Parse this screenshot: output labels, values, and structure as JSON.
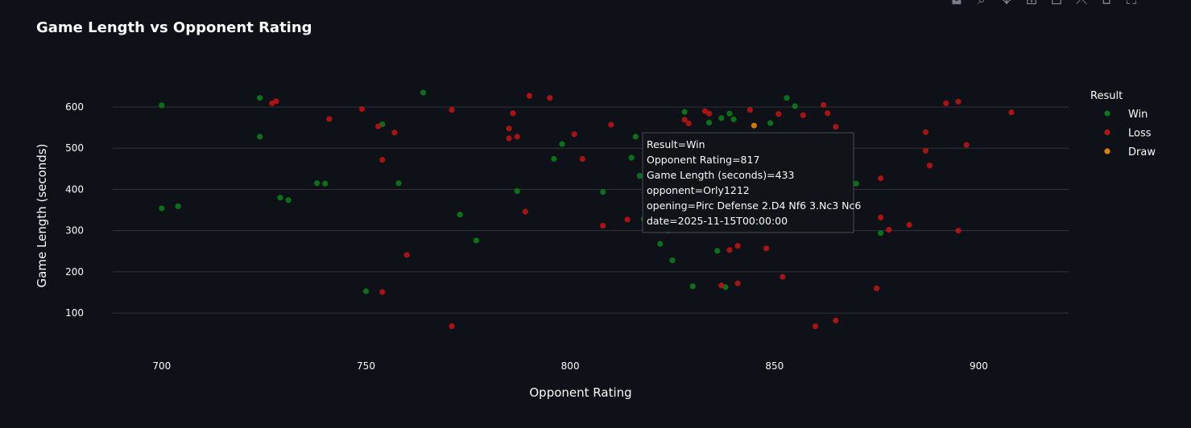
{
  "toolbar": {
    "icons": [
      "camera-icon",
      "zoom-icon",
      "pan-icon",
      "zoom-in-icon",
      "zoom-out-icon",
      "autoscale-icon",
      "reset-axes-icon",
      "fullscreen-icon"
    ],
    "glyphs": [
      "◘",
      "⌕",
      "✥",
      "⊞",
      "⊟",
      "⤧",
      "⌂",
      "⛶"
    ]
  },
  "colors": {
    "background": "#0e1117",
    "grid": "#31343b",
    "text": "#fafafa",
    "win": "#0b7a1a",
    "loss": "#b51515",
    "draw": "#d9830b",
    "tooltip_bg": "#111418",
    "tooltip_border": "#4a4d55"
  },
  "chart_data": {
    "type": "scatter",
    "title": "Game Length vs Opponent Rating",
    "xlabel": "Opponent Rating",
    "ylabel": "Game Length (seconds)",
    "xlim": [
      688,
      922
    ],
    "ylim": [
      30,
      680
    ],
    "xticks": [
      700,
      750,
      800,
      850,
      900
    ],
    "yticks": [
      100,
      200,
      300,
      400,
      500,
      600
    ],
    "grid": true,
    "legend": {
      "title": "Result",
      "position": "top-right"
    },
    "series": [
      {
        "name": "Win",
        "points": [
          [
            700,
            604
          ],
          [
            700,
            354
          ],
          [
            704,
            359
          ],
          [
            724,
            622
          ],
          [
            724,
            528
          ],
          [
            729,
            380
          ],
          [
            731,
            374
          ],
          [
            738,
            415
          ],
          [
            740,
            414
          ],
          [
            750,
            153
          ],
          [
            754,
            558
          ],
          [
            758,
            415
          ],
          [
            764,
            635
          ],
          [
            773,
            339
          ],
          [
            777,
            276
          ],
          [
            787,
            396
          ],
          [
            796,
            474
          ],
          [
            798,
            510
          ],
          [
            808,
            394
          ],
          [
            815,
            477
          ],
          [
            816,
            528
          ],
          [
            817,
            433
          ],
          [
            818,
            328
          ],
          [
            819,
            362
          ],
          [
            822,
            268
          ],
          [
            824,
            300
          ],
          [
            825,
            228
          ],
          [
            828,
            588
          ],
          [
            830,
            165
          ],
          [
            834,
            562
          ],
          [
            836,
            251
          ],
          [
            837,
            573
          ],
          [
            838,
            163
          ],
          [
            839,
            584
          ],
          [
            840,
            570
          ],
          [
            849,
            561
          ],
          [
            853,
            622
          ],
          [
            855,
            602
          ],
          [
            870,
            414
          ],
          [
            876,
            294
          ]
        ]
      },
      {
        "name": "Loss",
        "points": [
          [
            727,
            609
          ],
          [
            728,
            614
          ],
          [
            741,
            571
          ],
          [
            749,
            595
          ],
          [
            753,
            553
          ],
          [
            754,
            472
          ],
          [
            754,
            151
          ],
          [
            757,
            538
          ],
          [
            760,
            241
          ],
          [
            771,
            593
          ],
          [
            771,
            68
          ],
          [
            785,
            548
          ],
          [
            785,
            524
          ],
          [
            786,
            585
          ],
          [
            787,
            528
          ],
          [
            789,
            346
          ],
          [
            790,
            627
          ],
          [
            795,
            622
          ],
          [
            801,
            534
          ],
          [
            803,
            474
          ],
          [
            808,
            312
          ],
          [
            810,
            557
          ],
          [
            814,
            327
          ],
          [
            819,
            372
          ],
          [
            828,
            569
          ],
          [
            829,
            560
          ],
          [
            833,
            590
          ],
          [
            834,
            584
          ],
          [
            837,
            167
          ],
          [
            839,
            253
          ],
          [
            841,
            263
          ],
          [
            841,
            172
          ],
          [
            844,
            593
          ],
          [
            848,
            257
          ],
          [
            849,
            307
          ],
          [
            851,
            583
          ],
          [
            852,
            188
          ],
          [
            857,
            580
          ],
          [
            860,
            68
          ],
          [
            862,
            605
          ],
          [
            863,
            585
          ],
          [
            865,
            82
          ],
          [
            865,
            552
          ],
          [
            875,
            160
          ],
          [
            876,
            427
          ],
          [
            876,
            332
          ],
          [
            878,
            302
          ],
          [
            883,
            314
          ],
          [
            887,
            539
          ],
          [
            887,
            494
          ],
          [
            888,
            458
          ],
          [
            892,
            609
          ],
          [
            895,
            613
          ],
          [
            895,
            300
          ],
          [
            897,
            508
          ],
          [
            908,
            587
          ]
        ]
      },
      {
        "name": "Draw",
        "points": [
          [
            845,
            555
          ]
        ]
      }
    ]
  },
  "hover": {
    "point": [
      817,
      433
    ],
    "lines": [
      "Result=Win",
      "Opponent Rating=817",
      "Game Length (seconds)=433",
      "opponent=Orly1212",
      "opening=Pirc Defense 2.D4 Nf6 3.Nc3 Nc6",
      "date=2025-11-15T00:00:00"
    ]
  }
}
